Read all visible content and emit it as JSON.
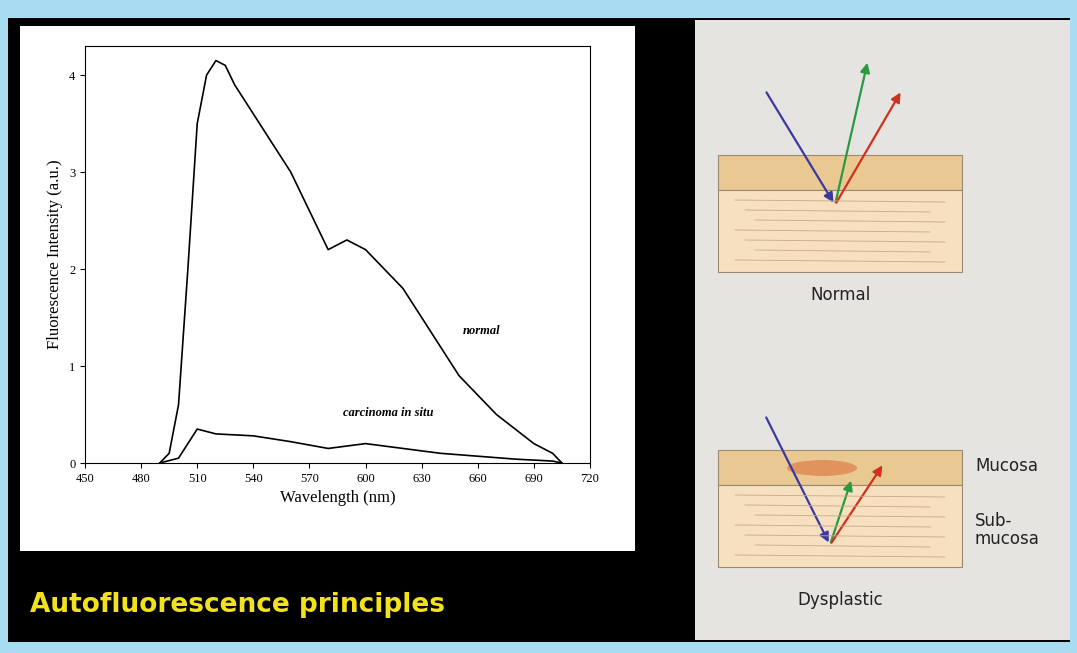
{
  "chart_data": {
    "type": "line",
    "x_label": "Wavelength (nm)",
    "y_label": "Fluorescence Intensity (a.u.)",
    "xlim": [
      450,
      720
    ],
    "ylim": [
      0,
      4.3
    ],
    "xticks": [
      450,
      480,
      510,
      540,
      570,
      600,
      630,
      660,
      690,
      720
    ],
    "yticks": [
      0,
      1,
      2,
      3,
      4
    ],
    "grid": false,
    "series": [
      {
        "color": "#000000",
        "x": [
          490,
          495,
          500,
          505,
          510,
          515,
          520,
          525,
          530,
          540,
          550,
          560,
          570,
          580,
          590,
          600,
          610,
          620,
          630,
          640,
          650,
          660,
          670,
          680,
          690,
          700,
          705
        ],
        "values": [
          0,
          0.1,
          0.6,
          2.0,
          3.5,
          4.0,
          4.15,
          4.1,
          3.9,
          3.6,
          3.3,
          3.0,
          2.6,
          2.2,
          2.3,
          2.2,
          2.0,
          1.8,
          1.5,
          1.2,
          0.9,
          0.7,
          0.5,
          0.35,
          0.2,
          0.1,
          0
        ]
      },
      {
        "color": "#000000",
        "x": [
          490,
          500,
          505,
          510,
          520,
          540,
          560,
          580,
          600,
          620,
          640,
          660,
          680,
          700,
          705
        ],
        "values": [
          0,
          0.05,
          0.2,
          0.35,
          0.3,
          0.28,
          0.22,
          0.15,
          0.2,
          0.15,
          0.1,
          0.07,
          0.04,
          0.02,
          0
        ]
      }
    ],
    "annotations": [
      {
        "text": "normal",
        "x": 652,
        "y": 1.3
      },
      {
        "text": "carcinoma in situ",
        "x": 588,
        "y": 0.45
      }
    ]
  },
  "slide": {
    "title": "Autofluorescence principles"
  },
  "diagram": {
    "normal": "Normal",
    "dysplastic": "Dysplastic",
    "mucosa": "Mucosa",
    "submucosa": "Sub-\nmucosa"
  }
}
